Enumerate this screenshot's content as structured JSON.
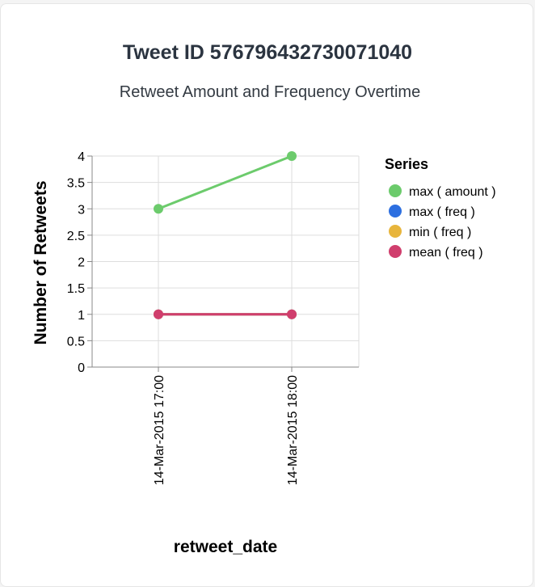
{
  "chart_data": {
    "type": "line",
    "title": "Tweet ID 576796432730071040",
    "subtitle": "Retweet Amount and Frequency Overtime",
    "xlabel": "retweet_date",
    "ylabel": "Number of Retweets",
    "categories": [
      "14-Mar-2015 17:00",
      "14-Mar-2015 18:00"
    ],
    "ylim": [
      0,
      4
    ],
    "yticks": [
      0,
      0.5,
      1,
      1.5,
      2,
      2.5,
      3,
      3.5,
      4
    ],
    "grid": true,
    "legend_title": "Series",
    "legend_position": "right",
    "series": [
      {
        "name": "max ( amount )",
        "color": "#6ccb6c",
        "values": [
          3,
          4
        ]
      },
      {
        "name": "max ( freq )",
        "color": "#2d6fe0",
        "values": [
          1,
          1
        ]
      },
      {
        "name": "min ( freq )",
        "color": "#e8b53c",
        "values": [
          1,
          1
        ]
      },
      {
        "name": "mean ( freq )",
        "color": "#d03e6d",
        "values": [
          1,
          1
        ]
      }
    ]
  }
}
